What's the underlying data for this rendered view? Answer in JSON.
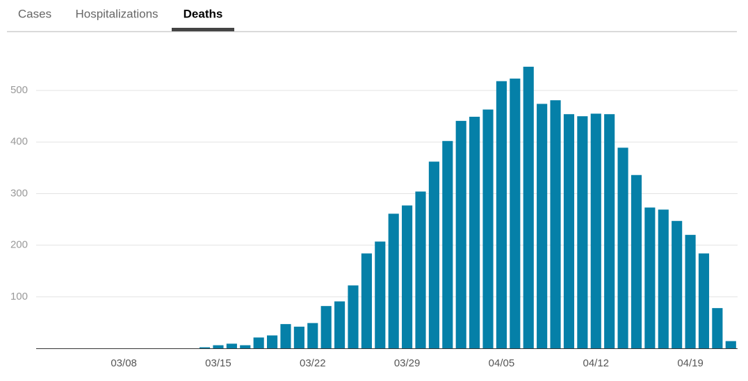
{
  "tabs": [
    "Cases",
    "Hospitalizations",
    "Deaths"
  ],
  "selected_tab": 2,
  "chart_data": {
    "type": "bar",
    "color": "#0580a8",
    "grid": true,
    "categories": [
      null,
      null,
      null,
      null,
      null,
      null,
      "03/08",
      null,
      null,
      null,
      null,
      null,
      null,
      "03/15",
      null,
      null,
      null,
      null,
      null,
      null,
      "03/22",
      null,
      null,
      null,
      null,
      null,
      null,
      "03/29",
      null,
      null,
      null,
      null,
      null,
      null,
      "04/05",
      null,
      null,
      null,
      null,
      null,
      null,
      "04/12",
      null,
      null,
      null,
      null,
      null,
      null,
      "04/19",
      null,
      null,
      null
    ],
    "values": [
      0,
      0,
      0,
      0,
      0,
      0,
      0,
      0,
      0,
      0,
      0,
      0,
      2,
      6,
      9,
      6,
      21,
      25,
      47,
      42,
      49,
      82,
      91,
      122,
      184,
      207,
      261,
      277,
      304,
      362,
      402,
      441,
      449,
      463,
      518,
      523,
      546,
      474,
      481,
      454,
      450,
      455,
      454,
      389,
      336,
      273,
      269,
      247,
      220,
      184,
      78,
      14
    ],
    "ylim": [
      0,
      550
    ],
    "yticks": [
      100,
      200,
      300,
      400,
      500
    ]
  }
}
